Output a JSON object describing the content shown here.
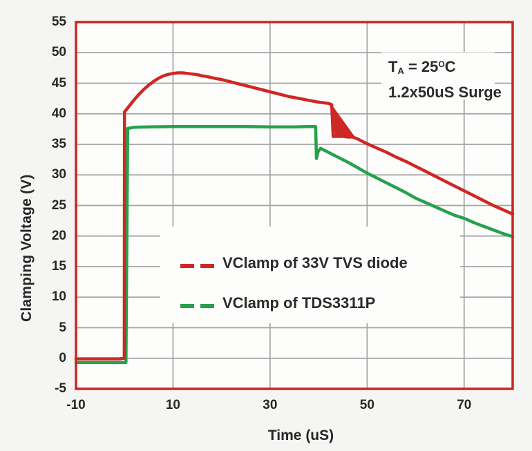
{
  "colors": {
    "page_bg": "#f5f5f3",
    "plot_bg": "#fdfdfc",
    "grid": "#a3a3a3",
    "border": "#cc2521",
    "text": "#262626",
    "legend_text": "#2b2b2b"
  },
  "chart_data": {
    "type": "line",
    "title": "",
    "xlabel": "Time (uS)",
    "ylabel": "Clamping Voltage (V)",
    "xlim": [
      -10,
      80
    ],
    "ylim": [
      -5,
      55
    ],
    "x_ticks": [
      -10,
      10,
      30,
      50,
      70
    ],
    "y_ticks": [
      55,
      50,
      45,
      40,
      35,
      30,
      25,
      20,
      15,
      10,
      5,
      0,
      -5
    ],
    "x_gridlines": [
      10,
      30,
      50,
      70
    ],
    "y_gridlines": [
      50,
      45,
      40,
      35,
      30,
      25,
      20,
      15,
      10,
      5,
      0
    ],
    "grid": true,
    "legend_position": "inside-middle-left",
    "annotation": {
      "line1_base": "T",
      "line1_sub": "A",
      "line1_mid": " = 25",
      "line1_sup": "O",
      "line1_end": "C",
      "line2": "1.2x50uS Surge"
    },
    "series": [
      {
        "name": "VClamp of 33V TVS diode",
        "color": "#cf2723",
        "points": [
          [
            -10,
            -0.1
          ],
          [
            -5,
            -0.1
          ],
          [
            -1,
            -0.1
          ],
          [
            -0.05,
            0
          ],
          [
            0,
            40.3
          ],
          [
            0.5,
            40.8
          ],
          [
            1,
            41.3
          ],
          [
            2,
            42.3
          ],
          [
            3,
            43.2
          ],
          [
            4,
            44.0
          ],
          [
            5,
            44.7
          ],
          [
            6,
            45.3
          ],
          [
            7,
            45.8
          ],
          [
            8,
            46.2
          ],
          [
            9,
            46.45
          ],
          [
            10,
            46.6
          ],
          [
            11,
            46.7
          ],
          [
            12,
            46.7
          ],
          [
            13,
            46.6
          ],
          [
            14,
            46.5
          ],
          [
            15,
            46.4
          ],
          [
            16,
            46.2
          ],
          [
            17,
            46.1
          ],
          [
            18,
            45.9
          ],
          [
            19,
            45.75
          ],
          [
            20,
            45.6
          ],
          [
            22,
            45.2
          ],
          [
            24,
            44.8
          ],
          [
            26,
            44.4
          ],
          [
            28,
            44.0
          ],
          [
            30,
            43.6
          ],
          [
            32,
            43.2
          ],
          [
            34,
            42.8
          ],
          [
            36,
            42.5
          ],
          [
            38,
            42.2
          ],
          [
            40,
            41.9
          ],
          [
            42,
            41.7
          ],
          [
            42.7,
            41.5
          ],
          [
            43,
            36.3
          ],
          [
            44,
            36.3
          ],
          [
            45,
            36.3
          ],
          [
            46,
            36.2
          ],
          [
            47,
            36.2
          ],
          [
            48,
            35.9
          ],
          [
            50,
            35.1
          ],
          [
            52,
            34.4
          ],
          [
            54,
            33.7
          ],
          [
            56,
            32.9
          ],
          [
            58,
            32.2
          ],
          [
            60,
            31.4
          ],
          [
            62,
            30.6
          ],
          [
            64,
            29.8
          ],
          [
            66,
            29.0
          ],
          [
            68,
            28.2
          ],
          [
            70,
            27.4
          ],
          [
            72,
            26.6
          ],
          [
            74,
            25.8
          ],
          [
            76,
            25.0
          ],
          [
            78,
            24.3
          ],
          [
            80,
            23.6
          ]
        ]
      },
      {
        "name": "VClamp of TDS3311P",
        "color": "#27a14b",
        "points": [
          [
            -10,
            -0.7
          ],
          [
            -5,
            -0.7
          ],
          [
            -1,
            -0.7
          ],
          [
            0.3,
            -0.7
          ],
          [
            0.65,
            37.6
          ],
          [
            2,
            37.8
          ],
          [
            5,
            37.85
          ],
          [
            10,
            37.9
          ],
          [
            15,
            37.9
          ],
          [
            20,
            37.9
          ],
          [
            25,
            37.9
          ],
          [
            30,
            37.85
          ],
          [
            35,
            37.85
          ],
          [
            38,
            37.9
          ],
          [
            39.4,
            37.9
          ],
          [
            39.55,
            32.7
          ],
          [
            39.9,
            33.8
          ],
          [
            40.4,
            34.35
          ],
          [
            42,
            33.7
          ],
          [
            44,
            32.9
          ],
          [
            46,
            32.1
          ],
          [
            48,
            31.2
          ],
          [
            50,
            30.3
          ],
          [
            52,
            29.5
          ],
          [
            54,
            28.7
          ],
          [
            56,
            27.9
          ],
          [
            58,
            27.1
          ],
          [
            60,
            26.2
          ],
          [
            62,
            25.5
          ],
          [
            64,
            24.8
          ],
          [
            66,
            24.1
          ],
          [
            68,
            23.4
          ],
          [
            70,
            22.9
          ],
          [
            72,
            22.2
          ],
          [
            74,
            21.6
          ],
          [
            76,
            21.0
          ],
          [
            78,
            20.4
          ],
          [
            80,
            19.9
          ]
        ]
      }
    ],
    "ringing_wedge": {
      "series": "VClamp of 33V TVS diode",
      "color": "#cf2723",
      "points": [
        [
          42.7,
          41.5
        ],
        [
          43.4,
          36.2
        ],
        [
          47.6,
          36.1
        ]
      ]
    }
  }
}
